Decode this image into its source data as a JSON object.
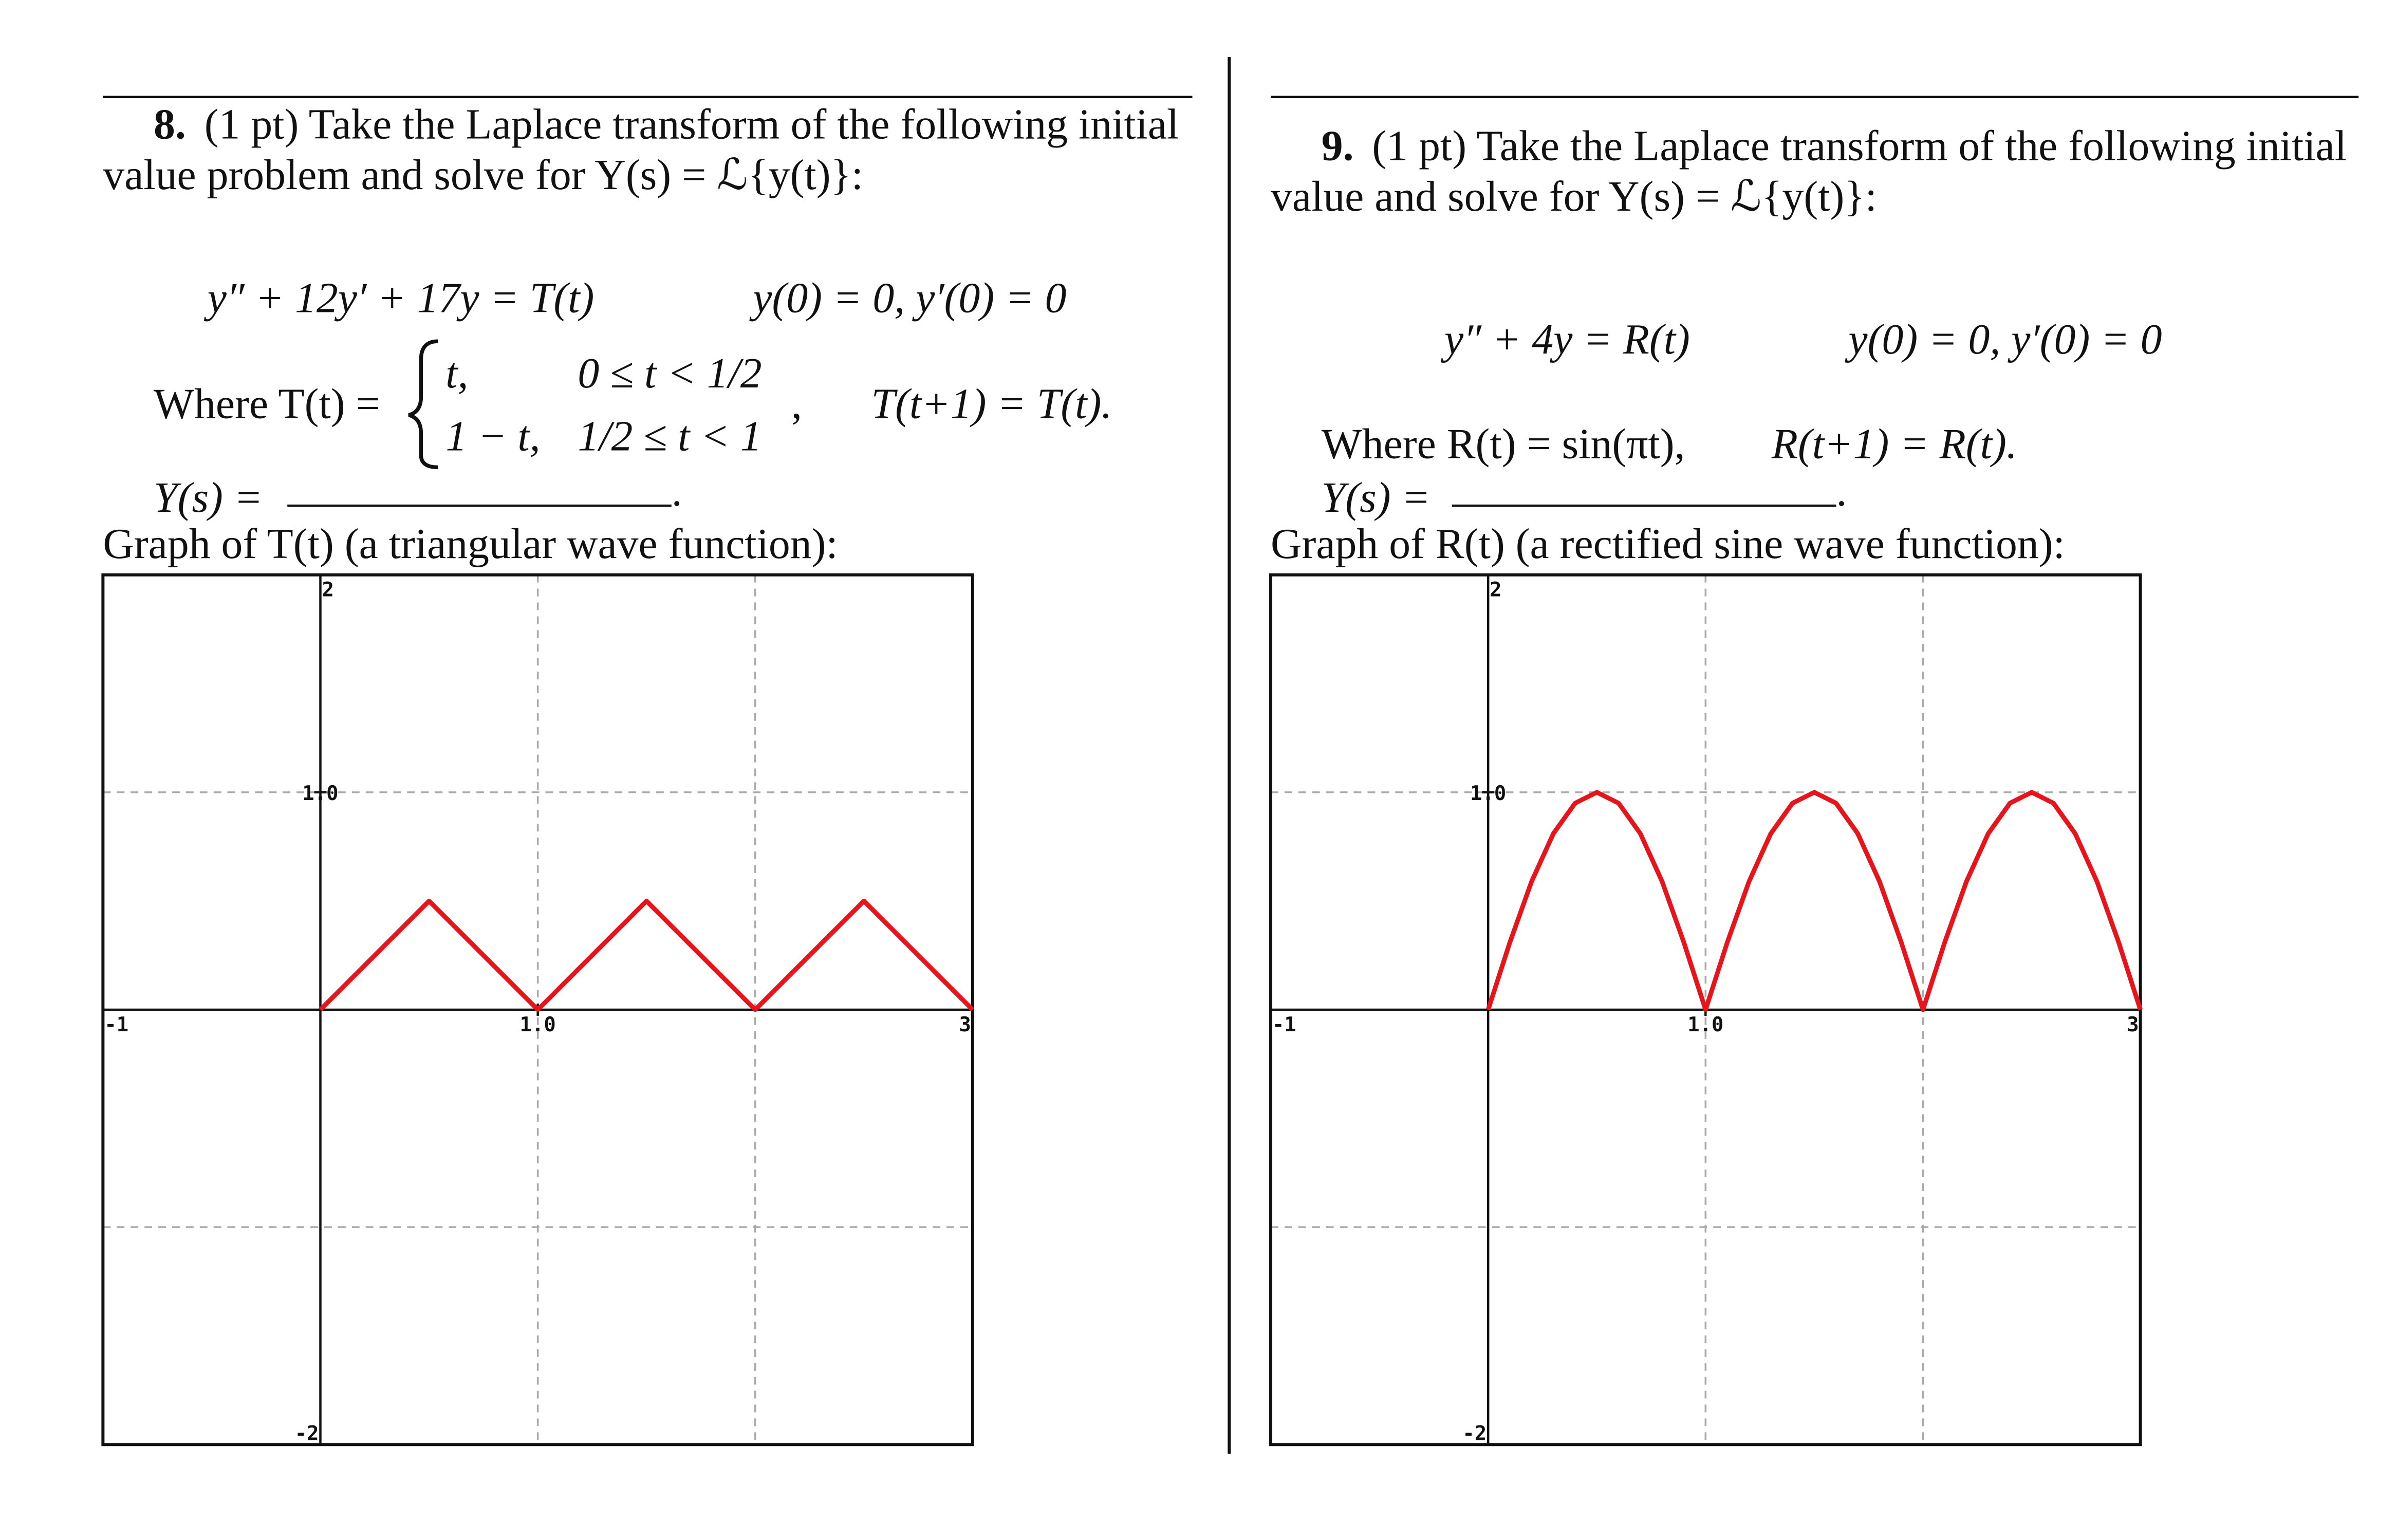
{
  "problems": [
    {
      "number": "8.",
      "intro": "(1 pt) Take the Laplace transform of the following initial",
      "intro2": "value problem and solve for Y(s) = ℒ{y(t)}:",
      "equation": "y″ + 12y′ + 17y = T(t)",
      "initial": "y(0) = 0, y′(0) = 0",
      "where": "Where T(t) =",
      "case1_expr": "t,",
      "case1_cond": "0 ≤ t < 1/2",
      "case2_expr": "1 − t,",
      "case2_cond": "1/2 ≤ t < 1",
      "cases_end": ",",
      "periodic": "T(t+1) = T(t).",
      "answer": "Y(s) =",
      "answer_end": ".",
      "graph_caption": "Graph of T(t) (a triangular wave function):"
    },
    {
      "number": "9.",
      "intro": "(1 pt) Take the Laplace transform of the following initial",
      "intro2": "value and solve for Y(s) = ℒ{y(t)}:",
      "equation": "y″ + 4y = R(t)",
      "initial": "y(0) = 0, y′(0) = 0",
      "where": "Where R(t) = sin(πt),",
      "periodic": "R(t+1) = R(t).",
      "answer": "Y(s) =",
      "answer_end": ".",
      "graph_caption": "Graph of R(t) (a rectified sine wave function):"
    }
  ],
  "chart_data": [
    {
      "type": "line",
      "x": [
        0,
        0.5,
        1,
        1.5,
        2,
        2.5,
        3
      ],
      "values": [
        0,
        0.5,
        0,
        0.5,
        0,
        0.5,
        0
      ],
      "color": "#e8141b",
      "xlim": [
        -1,
        3
      ],
      "ylim": [
        -2,
        2
      ],
      "xticks": [
        -1,
        {
          "value": 1,
          "label": "1.0"
        },
        3
      ],
      "yticks": [
        -2,
        {
          "value": 1,
          "label": "1.0"
        },
        2
      ],
      "xgrid": [
        1,
        2
      ],
      "ygrid": [
        -1,
        1
      ]
    },
    {
      "type": "line",
      "x": [
        0,
        0.1,
        0.2,
        0.3,
        0.4,
        0.5,
        0.6,
        0.7,
        0.8,
        0.9,
        1,
        1.1,
        1.2,
        1.3,
        1.4,
        1.5,
        1.6,
        1.7,
        1.8,
        1.9,
        2,
        2.1,
        2.2,
        2.3,
        2.4,
        2.5,
        2.6,
        2.7,
        2.8,
        2.9,
        3
      ],
      "values": [
        0,
        0.31,
        0.59,
        0.81,
        0.95,
        1,
        0.95,
        0.81,
        0.59,
        0.31,
        0,
        0.31,
        0.59,
        0.81,
        0.95,
        1,
        0.95,
        0.81,
        0.59,
        0.31,
        0,
        0.31,
        0.59,
        0.81,
        0.95,
        1,
        0.95,
        0.81,
        0.59,
        0.31,
        0
      ],
      "color": "#e8141b",
      "xlim": [
        -1,
        3
      ],
      "ylim": [
        -2,
        2
      ],
      "xticks": [
        -1,
        {
          "value": 1,
          "label": "1.0"
        },
        3
      ],
      "yticks": [
        -2,
        {
          "value": 1,
          "label": "1.0"
        },
        2
      ],
      "xgrid": [
        1,
        2
      ],
      "ygrid": [
        -1,
        1
      ]
    }
  ]
}
